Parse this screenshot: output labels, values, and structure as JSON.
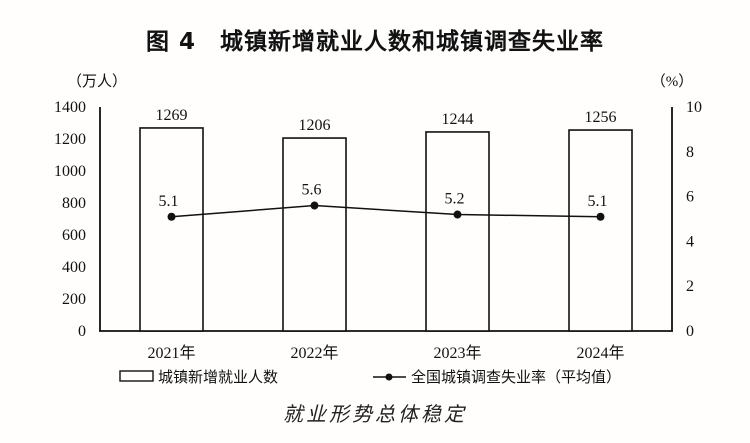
{
  "title": "图 4　城镇新增就业人数和城镇调查失业率",
  "caption": "就业形势总体稳定",
  "chart_data": {
    "type": "bar",
    "subtype": "bar-line-combo",
    "title": "图 4　城镇新增就业人数和城镇调查失业率",
    "categories": [
      "2021年",
      "2022年",
      "2023年",
      "2024年"
    ],
    "series": [
      {
        "name": "城镇新增就业人数",
        "type": "bar",
        "axis": "left",
        "values": [
          1269,
          1206,
          1244,
          1256
        ]
      },
      {
        "name": "全国城镇调查失业率（平均值）",
        "type": "line",
        "axis": "right",
        "values": [
          5.1,
          5.6,
          5.2,
          5.1
        ]
      }
    ],
    "left_axis": {
      "unit": "（万人）",
      "min": 0,
      "max": 1400,
      "step": 200,
      "ticks": [
        0,
        200,
        400,
        600,
        800,
        1000,
        1200,
        1400
      ]
    },
    "right_axis": {
      "unit": "（%）",
      "min": 0,
      "max": 10,
      "step": 2,
      "ticks": [
        0,
        2,
        4,
        6,
        8,
        10
      ]
    },
    "legend": [
      {
        "symbol": "bar-swatch",
        "label": "城镇新增就业人数"
      },
      {
        "symbol": "line-dot-swatch",
        "label": "全国城镇调查失业率（平均值）"
      }
    ],
    "grid": false,
    "legend_position": "bottom",
    "colors": {
      "ink": "#111111",
      "bar_fill": "#fffefd",
      "background": "#fffefd"
    }
  }
}
